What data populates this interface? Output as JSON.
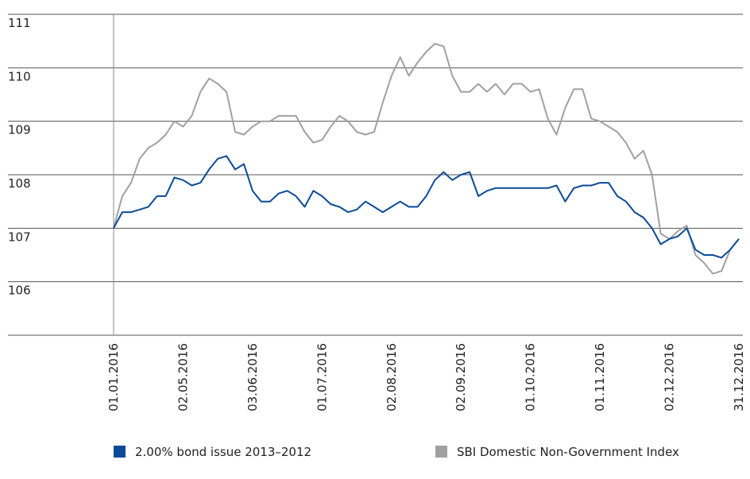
{
  "chart_data": {
    "type": "line",
    "categories": [
      "01.01.2016",
      null,
      null,
      null,
      null,
      null,
      null,
      null,
      "02.05.2016",
      null,
      null,
      null,
      null,
      null,
      null,
      null,
      "03.06.2016",
      null,
      null,
      null,
      null,
      null,
      null,
      null,
      "01.07.2016",
      null,
      null,
      null,
      null,
      null,
      null,
      null,
      "02.08.2016",
      null,
      null,
      null,
      null,
      null,
      null,
      null,
      "02.09.2016",
      null,
      null,
      null,
      null,
      null,
      null,
      null,
      "01.10.2016",
      null,
      null,
      null,
      null,
      null,
      null,
      null,
      "01.11.2016",
      null,
      null,
      null,
      null,
      null,
      null,
      null,
      "02.12.2016",
      null,
      null,
      null,
      null,
      null,
      null,
      null,
      "31.12.2016"
    ],
    "series": [
      {
        "name": "2.00% bond issue 2013–2012",
        "color": "#0b4a96",
        "values": [
          107.0,
          107.3,
          107.3,
          107.35,
          107.4,
          107.6,
          107.6,
          107.95,
          107.9,
          107.8,
          107.85,
          108.1,
          108.3,
          108.35,
          108.1,
          108.2,
          107.7,
          107.5,
          107.5,
          107.65,
          107.7,
          107.6,
          107.4,
          107.7,
          107.6,
          107.45,
          107.4,
          107.3,
          107.35,
          107.5,
          107.4,
          107.3,
          107.4,
          107.5,
          107.4,
          107.4,
          107.6,
          107.9,
          108.05,
          107.9,
          108.0,
          108.05,
          107.6,
          107.7,
          107.75,
          107.75,
          107.75,
          107.75,
          107.75,
          107.75,
          107.75,
          107.8,
          107.5,
          107.75,
          107.8,
          107.8,
          107.85,
          107.85,
          107.6,
          107.5,
          107.3,
          107.2,
          107.0,
          106.7,
          106.8,
          106.85,
          107.0,
          106.6,
          106.5,
          106.5,
          106.45,
          106.6,
          106.8
        ]
      },
      {
        "name": "SBI Domestic Non-Government Index",
        "color": "#a0a0a0",
        "values": [
          107.0,
          107.6,
          107.85,
          108.3,
          108.5,
          108.6,
          108.75,
          109.0,
          108.9,
          109.1,
          109.55,
          109.8,
          109.7,
          109.55,
          108.8,
          108.75,
          108.9,
          109.0,
          109.0,
          109.1,
          109.1,
          109.1,
          108.8,
          108.6,
          108.65,
          108.9,
          109.1,
          109.0,
          108.8,
          108.75,
          108.8,
          109.35,
          109.85,
          110.2,
          109.85,
          110.1,
          110.3,
          110.45,
          110.4,
          109.85,
          109.55,
          109.55,
          109.7,
          109.55,
          109.7,
          109.5,
          109.7,
          109.7,
          109.55,
          109.6,
          109.05,
          108.75,
          109.25,
          109.6,
          109.6,
          109.05,
          109.0,
          108.9,
          108.8,
          108.6,
          108.3,
          108.45,
          108.0,
          106.9,
          106.8,
          106.95,
          107.05,
          106.5,
          106.35,
          106.15,
          106.2,
          106.6,
          106.8
        ]
      }
    ],
    "ylim": [
      105,
      111
    ],
    "yticks": [
      106,
      107,
      108,
      109,
      110,
      111
    ],
    "grid": true
  }
}
